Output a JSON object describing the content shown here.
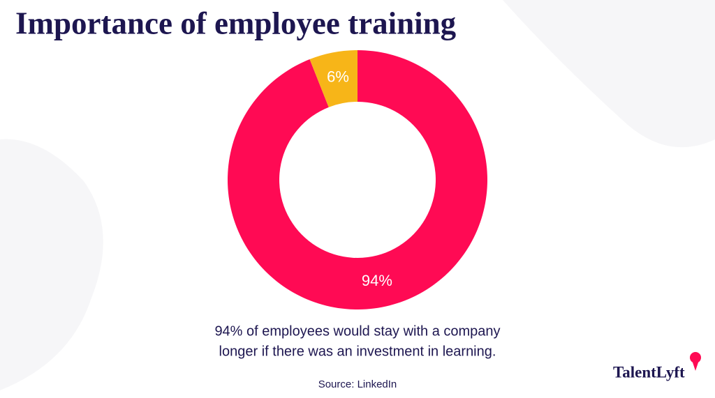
{
  "chart_data": {
    "type": "pie",
    "title": "Importance of employee training",
    "values": [
      94,
      6
    ],
    "value_labels": [
      "94%",
      "6%"
    ],
    "colors": [
      "#ff0a54",
      "#f7b518"
    ],
    "caption": [
      "94% of employees would stay with a company",
      "longer if there was an investment in learning."
    ],
    "source": "Source: LinkedIn",
    "brand": "TalentLyft"
  }
}
